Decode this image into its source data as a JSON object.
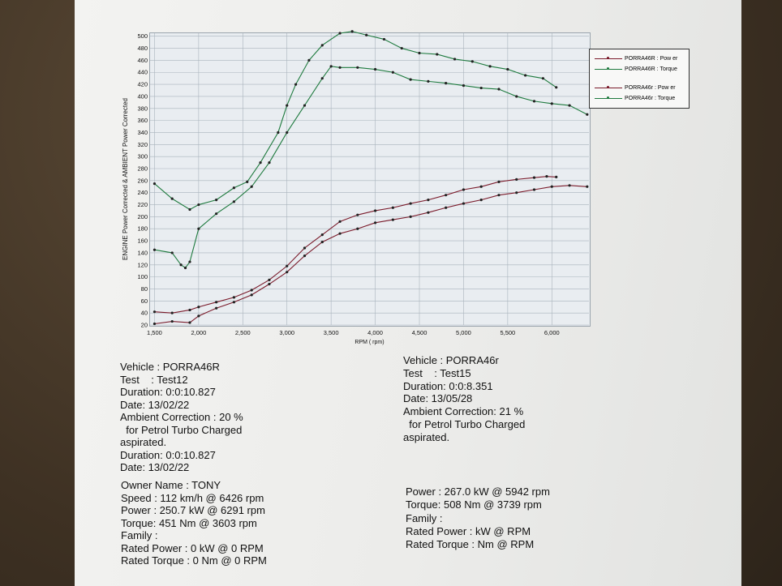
{
  "chart_data": {
    "type": "line",
    "xlabel": "RPM ( rpm)",
    "ylabel": "ENGINE Power Corrected & AMBIENT Power Corrected",
    "xlim": [
      1450,
      6420
    ],
    "ylim": [
      20,
      505
    ],
    "x_ticks": [
      "1,500",
      "2,000",
      "2,500",
      "3,000",
      "3,500",
      "4,000",
      "4,500",
      "5,000",
      "5,500",
      "6,000"
    ],
    "y_ticks": [
      "20",
      "40",
      "60",
      "80",
      "100",
      "120",
      "140",
      "160",
      "180",
      "200",
      "220",
      "240",
      "260",
      "280",
      "300",
      "320",
      "340",
      "360",
      "380",
      "400",
      "420",
      "440",
      "460",
      "480",
      "500"
    ],
    "colors": {
      "power": "#7a1a2a",
      "torque": "#1e7a3e"
    },
    "series": [
      {
        "name": "PORRA46R : Pow er",
        "kind": "power",
        "x": [
          1500,
          1700,
          1900,
          2000,
          2200,
          2400,
          2600,
          2800,
          3000,
          3200,
          3400,
          3600,
          3800,
          4000,
          4200,
          4400,
          4600,
          4800,
          5000,
          5200,
          5400,
          5600,
          5800,
          6000,
          6200,
          6400
        ],
        "y": [
          22,
          26,
          24,
          35,
          48,
          58,
          70,
          88,
          108,
          135,
          158,
          172,
          180,
          190,
          195,
          200,
          207,
          215,
          222,
          228,
          236,
          240,
          245,
          250,
          252,
          250
        ]
      },
      {
        "name": "PORRA46R : Torque",
        "kind": "torque",
        "x": [
          1500,
          1700,
          1800,
          1850,
          1900,
          2000,
          2200,
          2400,
          2600,
          2800,
          3000,
          3200,
          3400,
          3500,
          3600,
          3800,
          4000,
          4200,
          4400,
          4600,
          4800,
          5000,
          5200,
          5400,
          5600,
          5800,
          6000,
          6200,
          6400
        ],
        "y": [
          145,
          140,
          120,
          115,
          125,
          180,
          205,
          225,
          250,
          290,
          340,
          385,
          430,
          450,
          448,
          448,
          445,
          440,
          428,
          425,
          422,
          418,
          414,
          412,
          400,
          392,
          388,
          385,
          370
        ]
      },
      {
        "name": "PORRA46r : Pow er",
        "kind": "power",
        "x": [
          1500,
          1700,
          1900,
          2000,
          2200,
          2400,
          2600,
          2800,
          3000,
          3200,
          3400,
          3600,
          3800,
          4000,
          4200,
          4400,
          4600,
          4800,
          5000,
          5200,
          5400,
          5600,
          5800,
          5942,
          6050
        ],
        "y": [
          42,
          40,
          45,
          50,
          58,
          66,
          78,
          95,
          118,
          148,
          170,
          192,
          203,
          210,
          215,
          222,
          228,
          236,
          245,
          250,
          258,
          262,
          265,
          267,
          266
        ]
      },
      {
        "name": "PORRA46r : Torque",
        "kind": "torque",
        "x": [
          1500,
          1700,
          1900,
          2000,
          2200,
          2400,
          2550,
          2700,
          2900,
          3000,
          3100,
          3250,
          3400,
          3600,
          3739,
          3900,
          4100,
          4300,
          4500,
          4700,
          4900,
          5100,
          5300,
          5500,
          5700,
          5900,
          6050
        ],
        "y": [
          255,
          230,
          212,
          220,
          228,
          248,
          258,
          290,
          340,
          385,
          420,
          460,
          485,
          505,
          508,
          502,
          495,
          480,
          472,
          470,
          462,
          458,
          450,
          445,
          435,
          430,
          415
        ]
      }
    ]
  },
  "left_info": [
    "Vehicle : PORRA46R",
    "Test    : Test12",
    "Duration: 0:0:10.827",
    "Date: 13/02/22",
    "Ambient Correction : 20 %",
    "  for Petrol Turbo Charged",
    "aspirated.",
    "Duration: 0:0:10.827",
    "Date: 13/02/22"
  ],
  "left_info2": [
    "Owner Name : TONY",
    "Speed : 112 km/h @ 6426 rpm",
    "Power : 250.7 kW @ 6291 rpm",
    "Torque: 451 Nm @ 3603 rpm",
    "Family :",
    "Rated Power : 0 kW @ 0 RPM",
    "Rated Torque : 0 Nm @ 0 RPM"
  ],
  "right_info": [
    "Vehicle : PORRA46r",
    "Test    : Test15",
    "Duration: 0:0:8.351",
    "Date: 13/05/28",
    "Ambient Correction: 21 %",
    "  for Petrol Turbo Charged",
    "aspirated."
  ],
  "right_info2": [
    "Power : 267.0 kW @ 5942 rpm",
    "Torque: 508 Nm @ 3739 rpm",
    "Family :",
    "Rated Power :  kW @  RPM",
    "Rated Torque :  Nm @  RPM"
  ]
}
